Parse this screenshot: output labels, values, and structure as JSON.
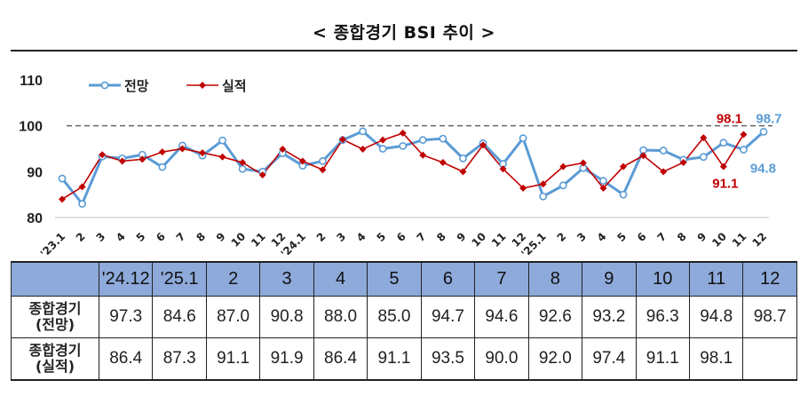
{
  "title": "< 종합경기 BSI 추이 >",
  "chart_data": {
    "type": "line",
    "title": "< 종합경기 BSI 추이 >",
    "categories": [
      "'23.1",
      "2",
      "3",
      "4",
      "5",
      "6",
      "7",
      "8",
      "9",
      "10",
      "11",
      "12",
      "'24.1",
      "2",
      "3",
      "4",
      "5",
      "6",
      "7",
      "8",
      "9",
      "10",
      "11",
      "12",
      "'25.1",
      "2",
      "3",
      "4",
      "5",
      "6",
      "7",
      "8",
      "9",
      "10",
      "11",
      "12"
    ],
    "series": [
      {
        "name": "전망",
        "color": "#5b9bd5",
        "values": [
          88.5,
          83.0,
          93.3,
          92.9,
          93.7,
          91.0,
          95.7,
          93.5,
          96.8,
          90.6,
          90.0,
          94.0,
          91.3,
          92.3,
          96.9,
          98.8,
          95.0,
          95.6,
          96.9,
          97.2,
          92.9,
          96.2,
          91.7,
          97.3,
          84.6,
          87.0,
          90.8,
          88.0,
          85.0,
          94.7,
          94.6,
          92.6,
          93.2,
          96.3,
          94.8,
          98.7
        ]
      },
      {
        "name": "실적",
        "color": "#c00000",
        "values": [
          84.0,
          86.7,
          93.7,
          92.3,
          92.7,
          94.3,
          95.0,
          94.1,
          93.2,
          92.0,
          89.3,
          94.9,
          92.3,
          90.4,
          97.0,
          94.9,
          96.9,
          98.4,
          93.6,
          92.0,
          90.0,
          95.8,
          90.6,
          86.4,
          87.3,
          91.1,
          91.9,
          86.4,
          91.1,
          93.5,
          90.0,
          92.0,
          97.4,
          91.1,
          98.1,
          null
        ]
      }
    ],
    "ylim": [
      80,
      110
    ],
    "yticks": [
      80,
      90,
      100,
      110
    ],
    "reference_line": 100,
    "annotations": [
      {
        "text": "98.1",
        "series": "실적",
        "category_index": 34,
        "color": "#c00000"
      },
      {
        "text": "98.7",
        "series": "전망",
        "category_index": 35,
        "color": "#5b9bd5"
      },
      {
        "text": "91.1",
        "series": "실적",
        "category_index": 33,
        "color": "#c00000"
      },
      {
        "text": "94.8",
        "series": "전망",
        "category_index": 34,
        "color": "#5b9bd5"
      }
    ],
    "legend_placement": "top-left",
    "grid": false
  },
  "table": {
    "headers": [
      "",
      "'24.12",
      "'25.1",
      "2",
      "3",
      "4",
      "5",
      "6",
      "7",
      "8",
      "9",
      "10",
      "11",
      "12"
    ],
    "rows": [
      {
        "label": "종합경기\n(전망)",
        "values": [
          "97.3",
          "84.6",
          "87.0",
          "90.8",
          "88.0",
          "85.0",
          "94.7",
          "94.6",
          "92.6",
          "93.2",
          "96.3",
          "94.8",
          "98.7"
        ]
      },
      {
        "label": "종합경기\n(실적)",
        "values": [
          "86.4",
          "87.3",
          "91.1",
          "91.9",
          "86.4",
          "91.1",
          "93.5",
          "90.0",
          "92.0",
          "97.4",
          "91.1",
          "98.1",
          ""
        ]
      }
    ]
  }
}
